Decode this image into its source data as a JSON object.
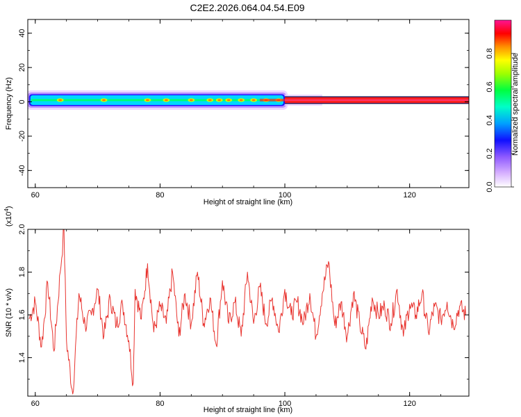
{
  "title": "C2E2.2026.064.04.54.E09",
  "chart_data": [
    {
      "type": "heatmap",
      "xlabel": "Height of straight line (km)",
      "ylabel": "Frequency (Hz)",
      "xlim": [
        58.8,
        129.5
      ],
      "ylim": [
        -50,
        48
      ],
      "xticks": [
        "60",
        "80",
        "100",
        "120"
      ],
      "yticks": [
        "-40",
        "-20",
        "0",
        "20",
        "40"
      ],
      "colorbar": {
        "label": "Normalized spectral amplitude",
        "range": [
          0,
          1
        ],
        "ticks": [
          "0.0",
          "0.2",
          "0.4",
          "0.6",
          "0.8"
        ]
      },
      "band": {
        "center_hz": 1,
        "x_start": 59,
        "x_transition": 100,
        "x_end": 129.5,
        "half_width_hz_before": 4,
        "half_width_hz_after": 2
      },
      "colors": [
        "#ffffff",
        "#e9c9ff",
        "#8f5aff",
        "#1010ff",
        "#00c8ff",
        "#00ff60",
        "#c8ff00",
        "#ffa000",
        "#ff0000",
        "#ff1090"
      ]
    },
    {
      "type": "line",
      "xlabel": "Height of straight line (km)",
      "ylabel": "SNR (10 * v/v)",
      "multiplier": "(x10^4)",
      "multiplier_base": "(x10",
      "multiplier_exp": "4",
      "multiplier_close": ")",
      "xlim": [
        58.8,
        129.5
      ],
      "ylim": [
        1.22,
        2.0
      ],
      "xticks": [
        "60",
        "80",
        "100",
        "120"
      ],
      "yticks": [
        "1.4",
        "1.6",
        "1.8",
        "2.0"
      ],
      "color": "#e8332e",
      "series": [
        {
          "x": [
            59,
            60,
            61,
            62,
            63,
            64,
            64.6,
            65,
            66,
            67,
            68,
            69,
            70,
            71,
            72,
            73,
            74,
            75,
            75.7,
            76,
            77,
            78,
            79,
            80,
            81,
            82,
            83,
            84,
            85,
            86,
            87,
            88,
            89,
            90,
            91,
            92,
            93,
            94,
            95,
            96,
            97,
            98,
            99,
            100,
            101,
            102,
            103,
            104,
            105,
            106,
            107,
            108,
            109,
            110,
            111,
            112,
            113,
            114,
            115,
            116,
            117,
            118,
            119,
            120,
            121,
            122,
            123,
            124,
            125,
            126,
            127,
            128,
            129
          ],
          "y": [
            1.58,
            1.66,
            1.45,
            1.75,
            1.43,
            1.8,
            2.0,
            1.48,
            1.23,
            1.7,
            1.55,
            1.6,
            1.72,
            1.5,
            1.68,
            1.55,
            1.65,
            1.48,
            1.28,
            1.72,
            1.58,
            1.84,
            1.52,
            1.64,
            1.56,
            1.8,
            1.5,
            1.7,
            1.56,
            1.8,
            1.56,
            1.68,
            1.46,
            1.76,
            1.56,
            1.66,
            1.5,
            1.8,
            1.56,
            1.73,
            1.56,
            1.68,
            1.52,
            1.72,
            1.6,
            1.66,
            1.56,
            1.7,
            1.5,
            1.7,
            1.85,
            1.55,
            1.66,
            1.5,
            1.7,
            1.56,
            1.44,
            1.68,
            1.6,
            1.64,
            1.56,
            1.72,
            1.5,
            1.65,
            1.6,
            1.7,
            1.52,
            1.64,
            1.58,
            1.66,
            1.55,
            1.64,
            1.6
          ]
        }
      ]
    }
  ]
}
